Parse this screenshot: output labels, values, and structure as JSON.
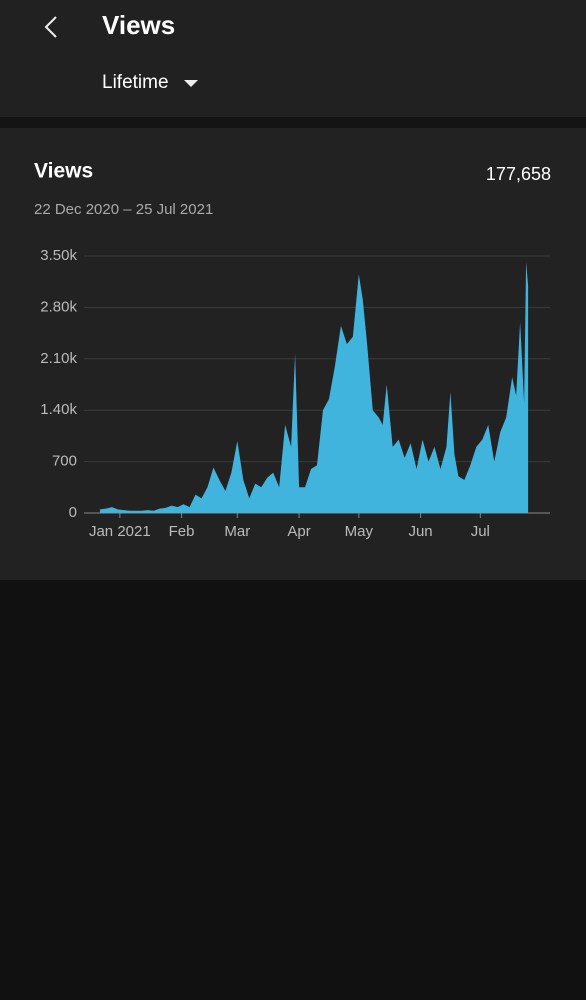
{
  "header": {
    "title": "Views",
    "filter": "Lifetime"
  },
  "card": {
    "title": "Views",
    "total": "177,658",
    "date_range": "22 Dec 2020 – 25 Jul 2021"
  },
  "chart_data": {
    "type": "area",
    "color": "#41b4de",
    "x": [
      0,
      3,
      6,
      9,
      12,
      15,
      18,
      21,
      24,
      27,
      30,
      33,
      36,
      39,
      42,
      45,
      48,
      51,
      54,
      57,
      60,
      63,
      66,
      69,
      72,
      75,
      78,
      81,
      84,
      87,
      90,
      93,
      96,
      98,
      100,
      103,
      106,
      109,
      112,
      115,
      118,
      121,
      124,
      127,
      130,
      132,
      134,
      137,
      140,
      142,
      144,
      147,
      150,
      153,
      156,
      159,
      162,
      165,
      168,
      171,
      174,
      176,
      178,
      180,
      183,
      186,
      189,
      192,
      195,
      198,
      201,
      204,
      207,
      209,
      211,
      213,
      214,
      215
    ],
    "values": [
      50,
      60,
      80,
      50,
      40,
      30,
      30,
      30,
      40,
      30,
      60,
      70,
      100,
      80,
      120,
      80,
      250,
      200,
      350,
      620,
      450,
      300,
      550,
      980,
      450,
      200,
      400,
      350,
      480,
      550,
      350,
      1200,
      900,
      2170,
      350,
      350,
      600,
      650,
      1400,
      1550,
      2000,
      2550,
      2300,
      2400,
      3250,
      2900,
      2350,
      1400,
      1300,
      1200,
      1750,
      900,
      1000,
      750,
      950,
      600,
      1000,
      700,
      900,
      600,
      900,
      1650,
      800,
      500,
      450,
      650,
      900,
      1000,
      1200,
      700,
      1100,
      1300,
      1850,
      1600,
      2600,
      1500,
      3420,
      3100
    ],
    "xlim": [
      -8,
      226
    ],
    "xticks": [
      {
        "value": 10,
        "label": "Jan 2021"
      },
      {
        "value": 41,
        "label": "Feb"
      },
      {
        "value": 69,
        "label": "Mar"
      },
      {
        "value": 100,
        "label": "Apr"
      },
      {
        "value": 130,
        "label": "May"
      },
      {
        "value": 161,
        "label": "Jun"
      },
      {
        "value": 191,
        "label": "Jul"
      }
    ],
    "ylim": [
      0,
      3500
    ],
    "yticks": [
      0,
      700,
      {
        "value": 1400,
        "label": "1.40k"
      },
      {
        "value": 2100,
        "label": "2.10k"
      },
      {
        "value": 2800,
        "label": "2.80k"
      },
      {
        "value": 3500,
        "label": "3.50k"
      }
    ],
    "grid": true
  }
}
